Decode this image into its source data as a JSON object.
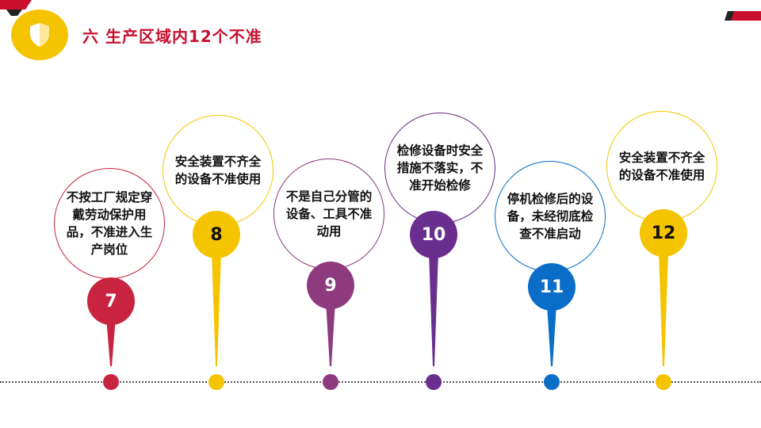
{
  "header": {
    "title": "六  生产区域内12个不准"
  },
  "colors": {
    "title": "#c8102e",
    "accent_yellow": "#f5c400",
    "accent_red": "#c8102e",
    "accent_purple": "#7a2e7e",
    "accent_blue": "#0a6ec8"
  },
  "items": [
    {
      "number": "7",
      "text": "不按工厂规定穿戴劳动保护用品，不准进入生产岗位",
      "color": "#c8243f"
    },
    {
      "number": "8",
      "text": "安全装置不齐全的设备不准使用",
      "color": "#f5c400"
    },
    {
      "number": "9",
      "text": "不是自己分管的设备、工具不准动用",
      "color": "#8e3a7e"
    },
    {
      "number": "10",
      "text": "检修设备时安全措施不落实，不准开始检修",
      "color": "#6a2e8e"
    },
    {
      "number": "11",
      "text": "停机检修后的设备，未经彻底检查不准启动",
      "color": "#0a6ec8"
    },
    {
      "number": "12",
      "text": "安全装置不齐全的设备不准使用",
      "color": "#f5c400"
    }
  ]
}
